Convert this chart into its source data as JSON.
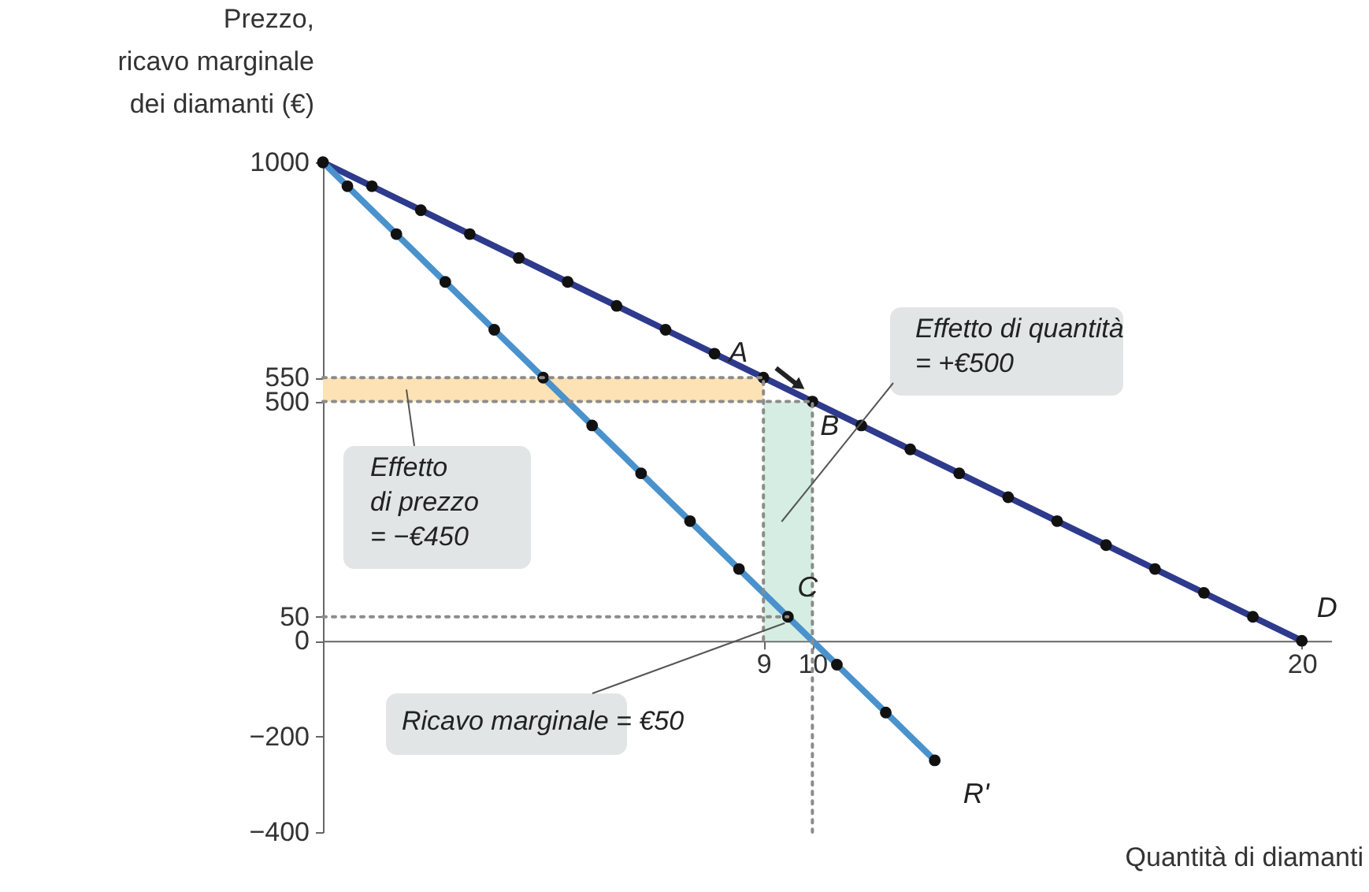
{
  "chart_data": {
    "type": "line",
    "xlabel": "Quantità di diamanti",
    "ylabel": "Prezzo,\nricavo marginale\ndei diamanti (€)",
    "xlim": [
      0,
      20.6
    ],
    "ylim": [
      -400,
      1000
    ],
    "xticks": [
      9,
      10,
      20
    ],
    "yticks": [
      -400,
      -200,
      0,
      50,
      500,
      550,
      1000
    ],
    "grid": false,
    "marker": "circle",
    "series": [
      {
        "name": "D",
        "color": "#2e3a8c",
        "x": [
          0,
          1,
          2,
          3,
          4,
          5,
          6,
          7,
          8,
          9,
          10,
          11,
          12,
          13,
          14,
          15,
          16,
          17,
          18,
          19,
          20
        ],
        "values": [
          1000,
          950,
          900,
          850,
          800,
          750,
          700,
          650,
          600,
          550,
          500,
          450,
          400,
          350,
          300,
          250,
          200,
          150,
          100,
          50,
          0
        ]
      },
      {
        "name": "R'",
        "color": "#4a92cc",
        "x": [
          0,
          0.5,
          1.5,
          2.5,
          3.5,
          4.5,
          5.5,
          6.5,
          7.5,
          8.5,
          9.5,
          10.5,
          11.5,
          12.5
        ],
        "values": [
          1000,
          950,
          850,
          750,
          650,
          550,
          450,
          350,
          250,
          150,
          50,
          -50,
          -150,
          -250
        ]
      },
      {
        "color": "#8c8c8c",
        "line_style": "dotted",
        "marker": "none",
        "x": [
          0,
          9,
          9
        ],
        "values": [
          550,
          550,
          0
        ]
      },
      {
        "color": "#8c8c8c",
        "line_style": "dotted",
        "marker": "none",
        "x": [
          0,
          10,
          10
        ],
        "values": [
          500,
          500,
          -400
        ]
      },
      {
        "color": "#8c8c8c",
        "line_style": "dotted",
        "marker": "none",
        "x": [
          0,
          9.5
        ],
        "values": [
          50,
          50
        ]
      }
    ],
    "bands": [
      {
        "axis": "y",
        "from": 500,
        "to": 550,
        "label": "Effetto\ndi prezzo\n= −€450",
        "color": "#fde2b5"
      },
      {
        "axis": "x",
        "from": 9,
        "to": 10,
        "label": "Effetto di quantità\n= +€500",
        "color": "#d6ede3"
      }
    ],
    "annotations": [
      {
        "text": "A",
        "x": 9,
        "y": 550
      },
      {
        "text": "B",
        "x": 10,
        "y": 500
      },
      {
        "text": "Ricavo marginale = €50",
        "x": 9.5,
        "y": 50
      },
      {
        "text": "C",
        "x": 9.5,
        "y": 50
      }
    ]
  }
}
